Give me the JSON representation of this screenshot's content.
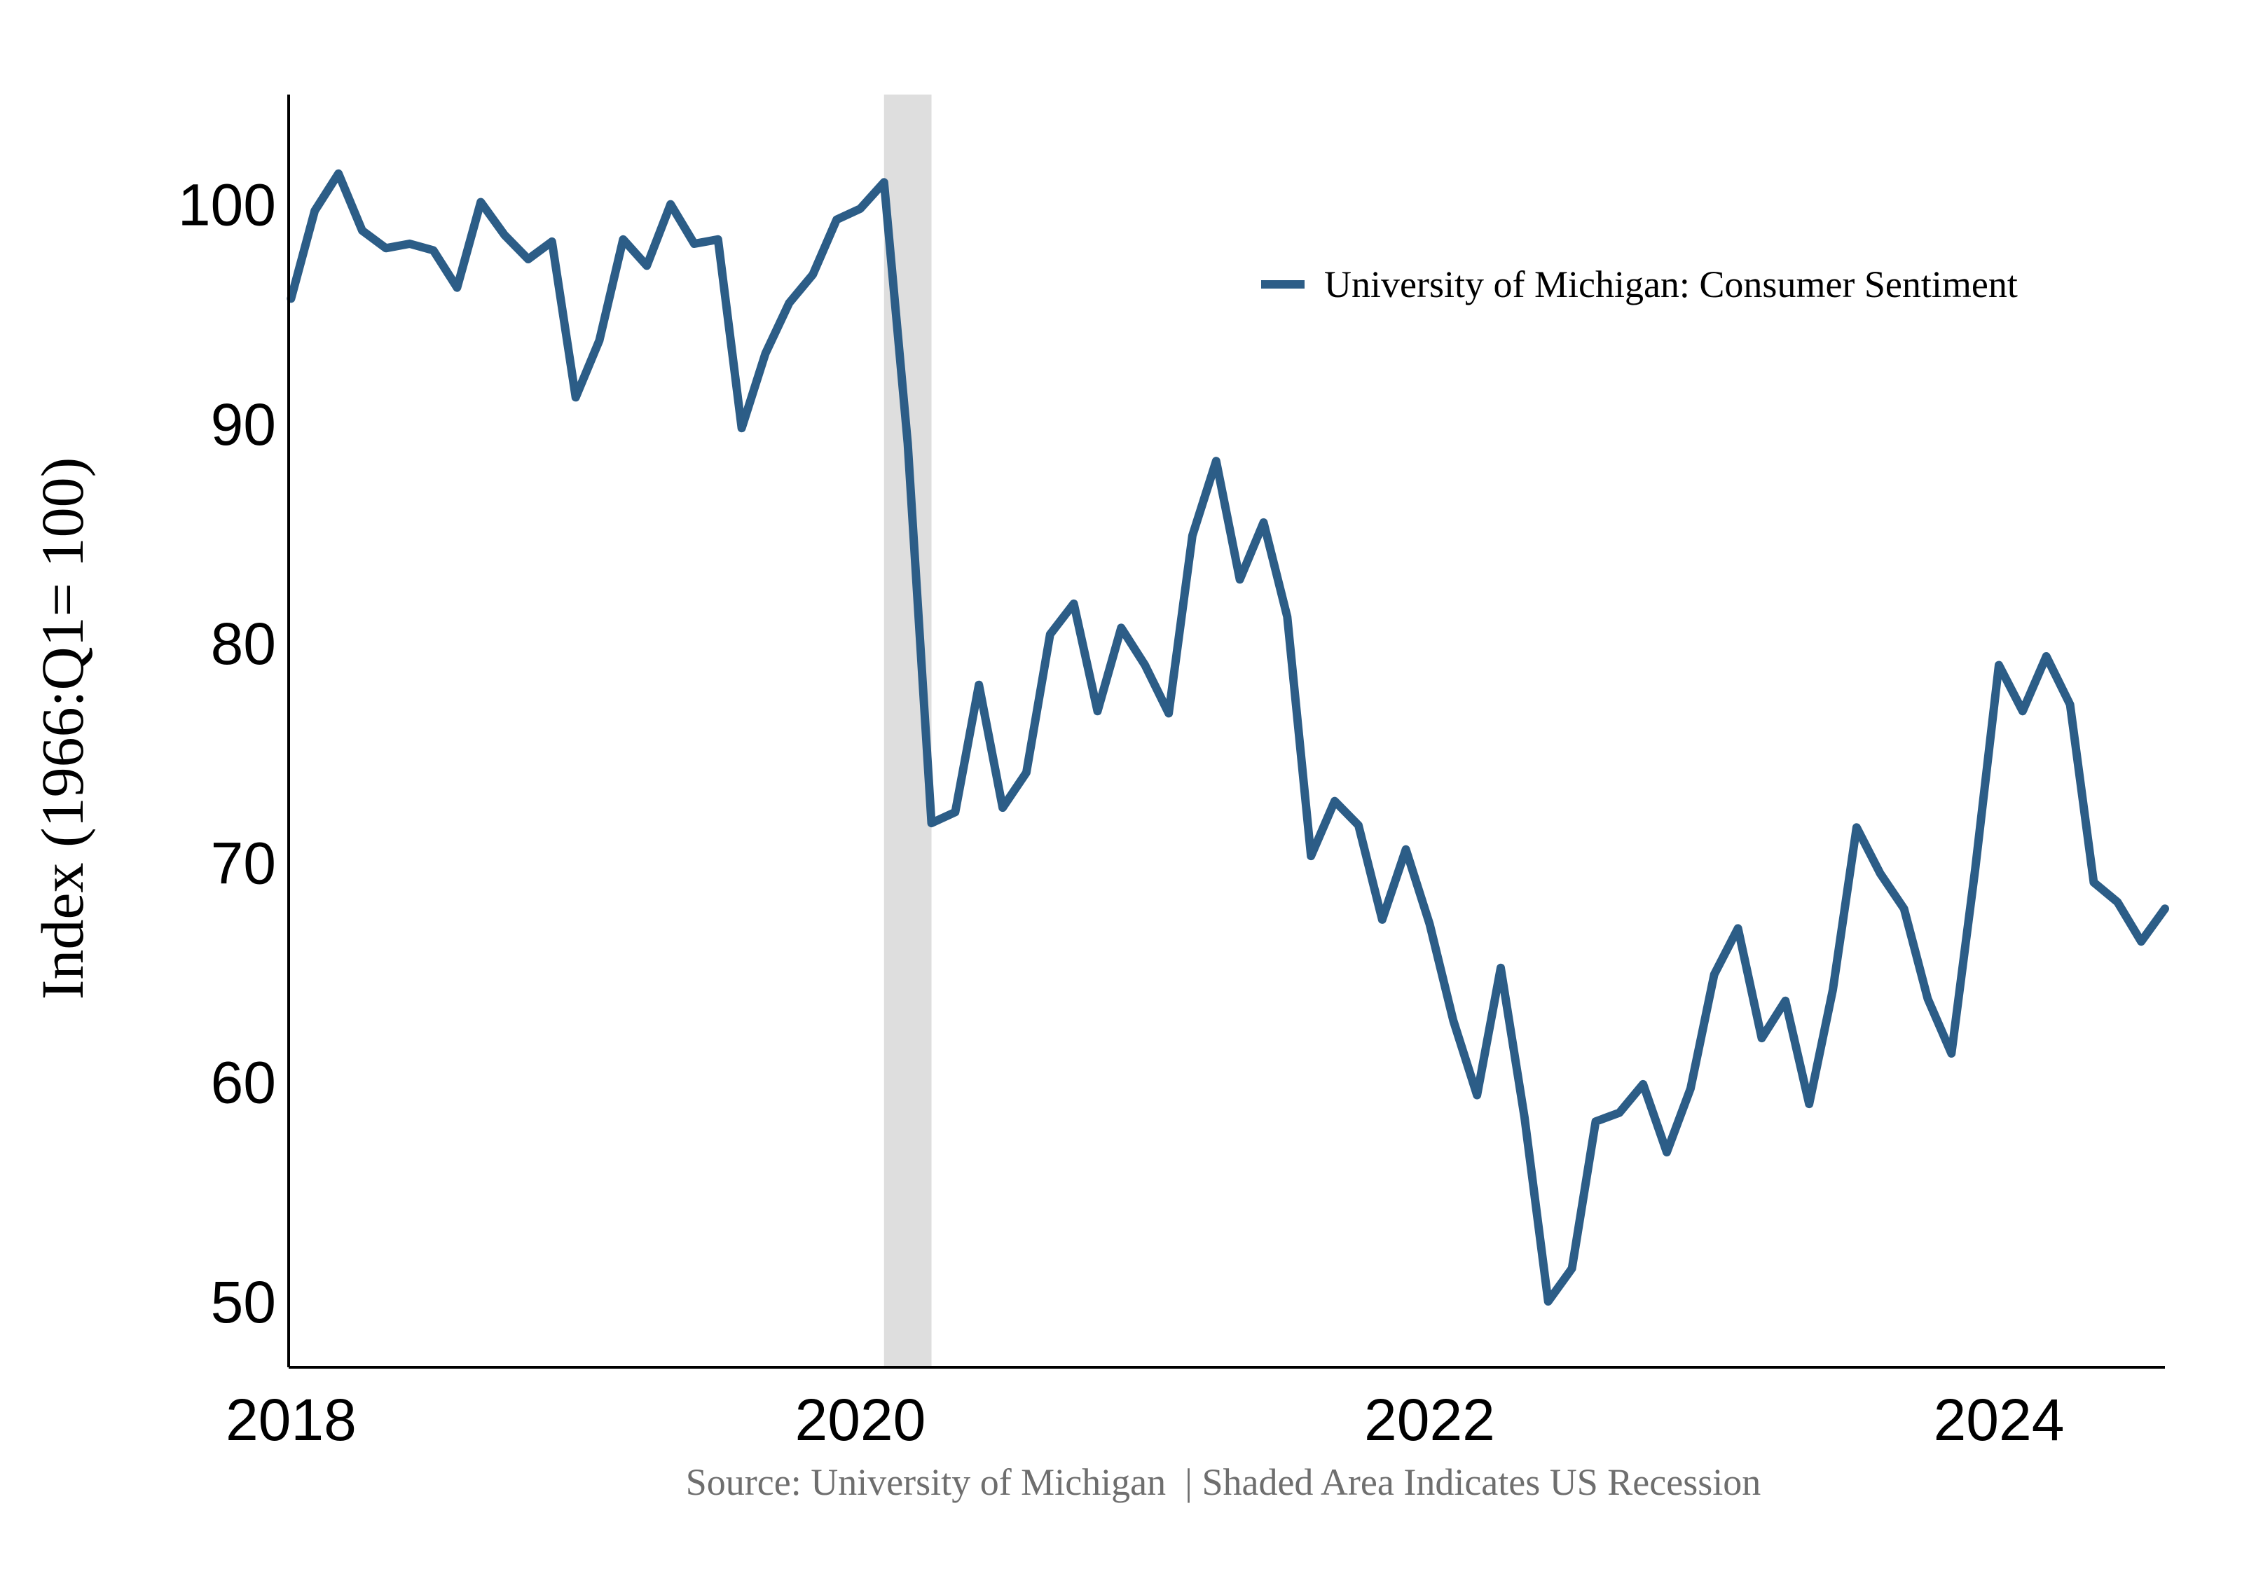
{
  "chart_data": {
    "type": "line",
    "title": "",
    "xlabel": "",
    "ylabel": "Index (1966:Q1= 100)",
    "ylim": [
      47,
      105
    ],
    "xlim": [
      "2018-01",
      "2024-08"
    ],
    "yticks": [
      50,
      60,
      70,
      80,
      90,
      100
    ],
    "xticks": [
      {
        "label": "2018",
        "date": "2018-01"
      },
      {
        "label": "2020",
        "date": "2020-01"
      },
      {
        "label": "2022",
        "date": "2022-01"
      },
      {
        "label": "2024",
        "date": "2024-01"
      }
    ],
    "grid": false,
    "legend_position": "top-right",
    "recession": {
      "start": "2020-02",
      "end": "2020-04",
      "color": "#dedede"
    },
    "source": "Source: University of Michigan  | Shaded Area Indicates US Recession",
    "series": [
      {
        "name": "University of Michigan: Consumer Sentiment",
        "color": "#2c5d87",
        "x": [
          "2018-01",
          "2018-02",
          "2018-03",
          "2018-04",
          "2018-05",
          "2018-06",
          "2018-07",
          "2018-08",
          "2018-09",
          "2018-10",
          "2018-11",
          "2018-12",
          "2019-01",
          "2019-02",
          "2019-03",
          "2019-04",
          "2019-05",
          "2019-06",
          "2019-07",
          "2019-08",
          "2019-09",
          "2019-10",
          "2019-11",
          "2019-12",
          "2020-01",
          "2020-02",
          "2020-03",
          "2020-04",
          "2020-05",
          "2020-06",
          "2020-07",
          "2020-08",
          "2020-09",
          "2020-10",
          "2020-11",
          "2020-12",
          "2021-01",
          "2021-02",
          "2021-03",
          "2021-04",
          "2021-05",
          "2021-06",
          "2021-07",
          "2021-08",
          "2021-09",
          "2021-10",
          "2021-11",
          "2021-12",
          "2022-01",
          "2022-02",
          "2022-03",
          "2022-04",
          "2022-05",
          "2022-06",
          "2022-07",
          "2022-08",
          "2022-09",
          "2022-10",
          "2022-11",
          "2022-12",
          "2023-01",
          "2023-02",
          "2023-03",
          "2023-04",
          "2023-05",
          "2023-06",
          "2023-07",
          "2023-08",
          "2023-09",
          "2023-10",
          "2023-11",
          "2023-12",
          "2024-01",
          "2024-02",
          "2024-03",
          "2024-04",
          "2024-05",
          "2024-06",
          "2024-07",
          "2024-08"
        ],
        "values": [
          95.7,
          99.7,
          101.4,
          98.8,
          98.0,
          98.2,
          97.9,
          96.2,
          100.1,
          98.6,
          97.5,
          98.3,
          91.2,
          93.8,
          98.4,
          97.2,
          100.0,
          98.2,
          98.4,
          89.8,
          93.2,
          95.5,
          96.8,
          99.3,
          99.8,
          101.0,
          89.1,
          71.8,
          72.3,
          78.1,
          72.5,
          74.1,
          80.4,
          81.8,
          76.9,
          80.7,
          79.0,
          76.8,
          84.9,
          88.3,
          82.9,
          85.5,
          81.2,
          70.3,
          72.8,
          71.7,
          67.4,
          70.6,
          67.2,
          62.8,
          59.4,
          65.2,
          58.4,
          50.0,
          51.5,
          58.2,
          58.6,
          59.9,
          56.8,
          59.7,
          64.9,
          67.0,
          62.0,
          63.7,
          59.0,
          64.2,
          71.6,
          69.5,
          67.9,
          63.8,
          61.3,
          69.7,
          79.0,
          76.9,
          79.4,
          77.2,
          69.1,
          68.2,
          66.4,
          67.9
        ]
      }
    ]
  }
}
